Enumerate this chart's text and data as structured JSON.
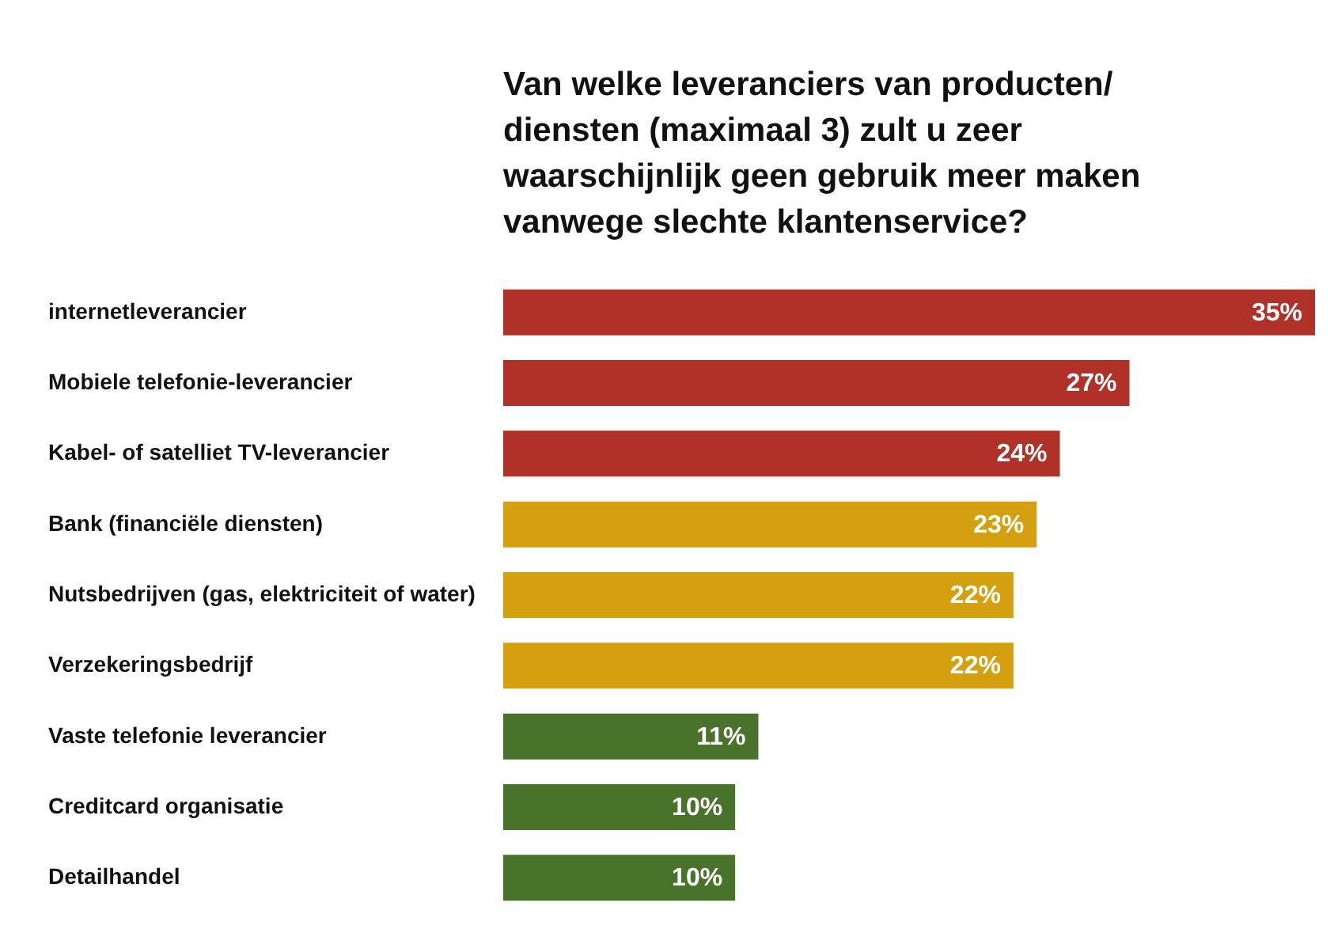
{
  "chart_data": {
    "type": "bar",
    "orientation": "horizontal",
    "title": "Van welke leveranciers van producten/\ndiensten (maximaal 3) zult u zeer\nwaarschijnlijk geen gebruik meer maken\nvanwege slechte klantenservice?",
    "categories": [
      "internetleverancier",
      "Mobiele telefonie-leverancier",
      "Kabel- of satelliet TV-leverancier",
      "Bank (financiële diensten)",
      "Nutsbedrijven (gas, elektriciteit of water)",
      "Verzekeringsbedrijf",
      "Vaste telefonie leverancier",
      "Creditcard organisatie",
      "Detailhandel"
    ],
    "values": [
      35,
      27,
      24,
      23,
      22,
      22,
      11,
      10,
      10
    ],
    "value_labels": [
      "35%",
      "27%",
      "24%",
      "23%",
      "22%",
      "22%",
      "11%",
      "10%",
      "10%"
    ],
    "colors": [
      "#b03127",
      "#b03127",
      "#b03127",
      "#d5a00f",
      "#d5a00f",
      "#d5a00f",
      "#49722b",
      "#49722b",
      "#49722b"
    ]
  }
}
